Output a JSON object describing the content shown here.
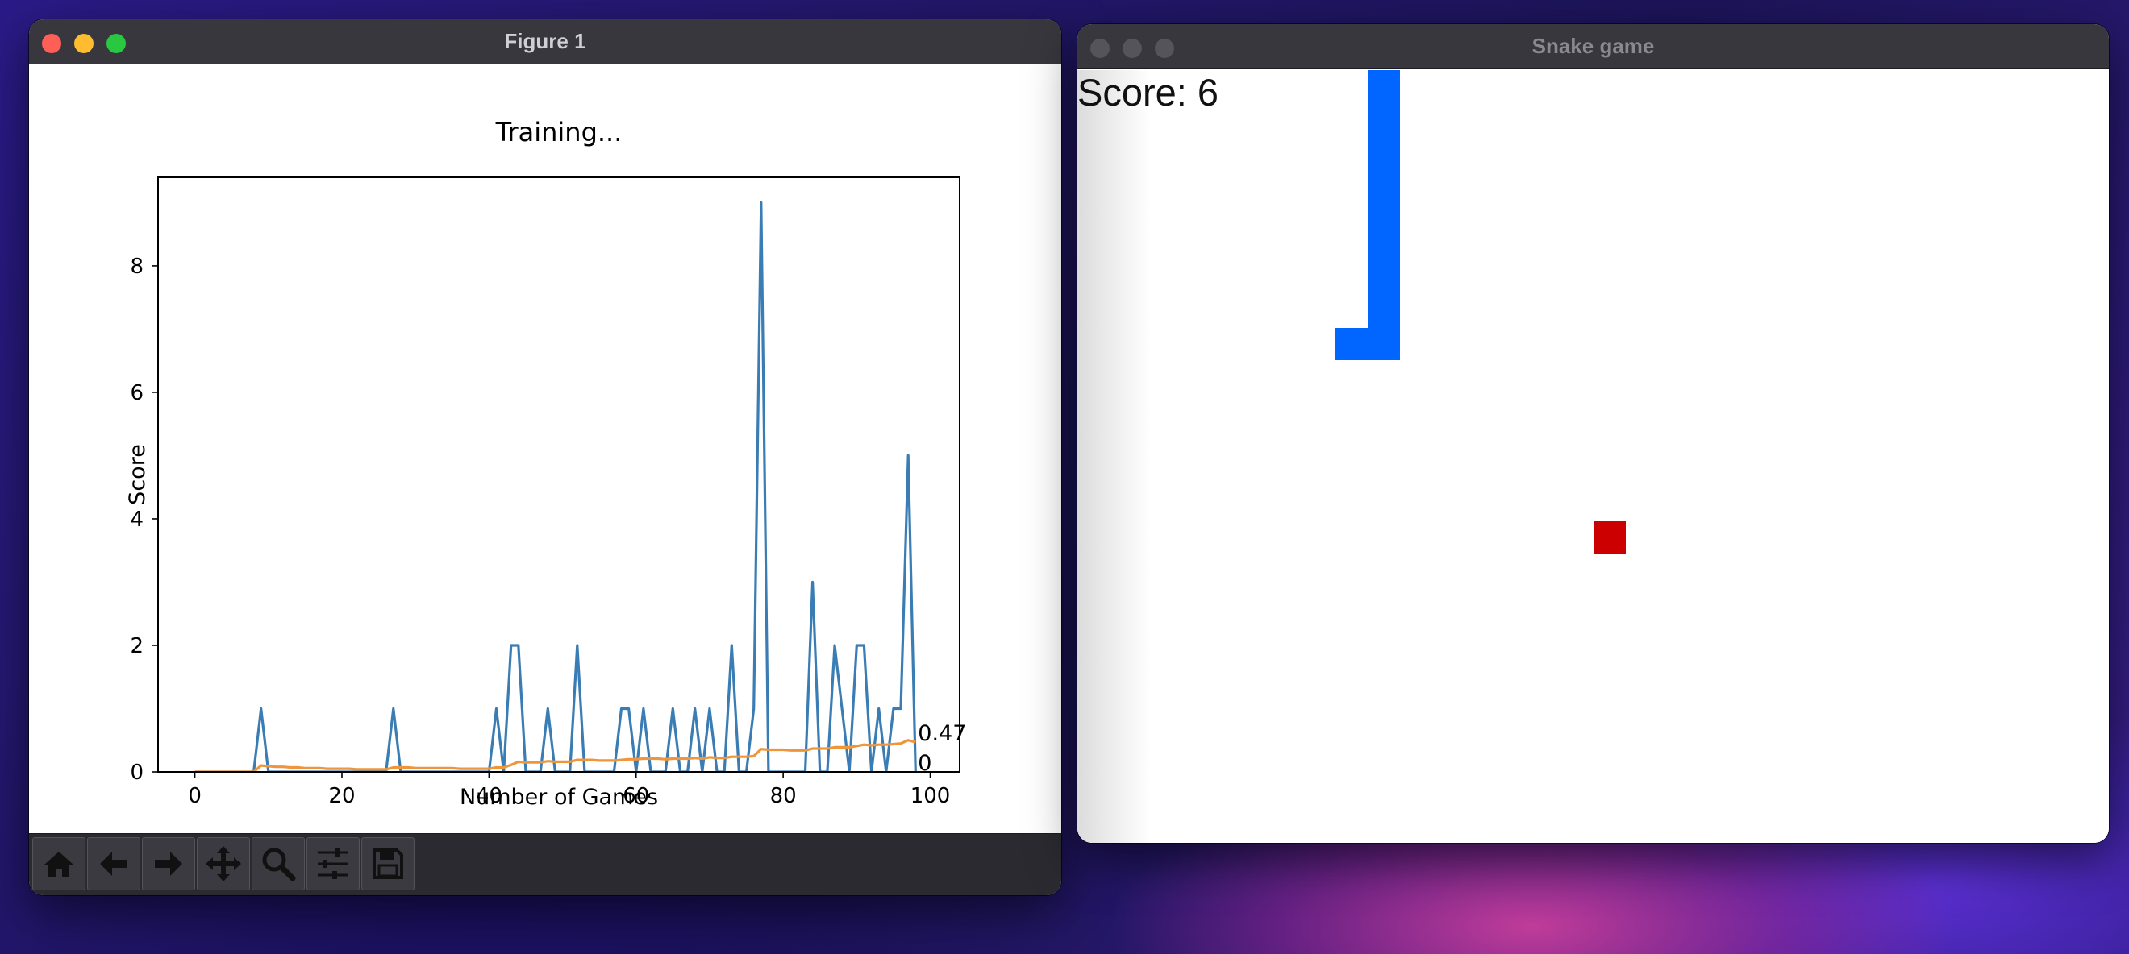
{
  "figure_window": {
    "title": "Figure 1",
    "toolbar": [
      {
        "name": "home-icon"
      },
      {
        "name": "back-arrow-icon"
      },
      {
        "name": "forward-arrow-icon"
      },
      {
        "name": "pan-icon"
      },
      {
        "name": "zoom-icon"
      },
      {
        "name": "configure-subplots-icon"
      },
      {
        "name": "save-icon"
      }
    ]
  },
  "chart_data": {
    "type": "line",
    "title": "Training...",
    "xlabel": "Number of Games",
    "ylabel": "Score",
    "xlim": [
      -5,
      104
    ],
    "ylim": [
      0,
      9.4
    ],
    "xticks": [
      0,
      20,
      40,
      60,
      80,
      100
    ],
    "yticks": [
      0,
      2,
      4,
      6,
      8
    ],
    "colors": {
      "scores": "#3a7db4",
      "mean": "#f0963a"
    },
    "series": [
      {
        "x": [
          0,
          1,
          2,
          3,
          4,
          5,
          6,
          7,
          8,
          9,
          10,
          11,
          12,
          13,
          14,
          15,
          16,
          17,
          18,
          19,
          20,
          21,
          22,
          23,
          24,
          25,
          26,
          27,
          28,
          29,
          30,
          31,
          32,
          33,
          34,
          35,
          36,
          37,
          38,
          39,
          40,
          41,
          42,
          43,
          44,
          45,
          46,
          47,
          48,
          49,
          50,
          51,
          52,
          53,
          54,
          55,
          56,
          57,
          58,
          59,
          60,
          61,
          62,
          63,
          64,
          65,
          66,
          67,
          68,
          69,
          70,
          71,
          72,
          73,
          74,
          75,
          76,
          77,
          78,
          79,
          80,
          81,
          82,
          83,
          84,
          85,
          86,
          87,
          88,
          89,
          90,
          91,
          92,
          93,
          94,
          95,
          96,
          97,
          98
        ],
        "values": [
          0,
          0,
          0,
          0,
          0,
          0,
          0,
          0,
          0,
          1,
          0,
          0,
          0,
          0,
          0,
          0,
          0,
          0,
          0,
          0,
          0,
          0,
          0,
          0,
          0,
          0,
          0,
          1,
          0,
          0,
          0,
          0,
          0,
          0,
          0,
          0,
          0,
          0,
          0,
          0,
          0,
          1,
          0,
          2,
          2,
          0,
          0,
          0,
          1,
          0,
          0,
          0,
          2,
          0,
          0,
          0,
          0,
          0,
          1,
          1,
          0,
          1,
          0,
          0,
          0,
          1,
          0,
          0,
          1,
          0,
          1,
          0,
          0,
          2,
          0,
          0,
          1,
          9,
          0,
          0,
          0,
          0,
          0,
          0,
          3,
          0,
          0,
          2,
          1,
          0,
          2,
          2,
          0,
          1,
          0,
          1,
          1,
          5,
          0
        ]
      },
      {
        "x": [
          0,
          1,
          2,
          3,
          4,
          5,
          6,
          7,
          8,
          9,
          10,
          11,
          12,
          13,
          14,
          15,
          16,
          17,
          18,
          19,
          20,
          21,
          22,
          23,
          24,
          25,
          26,
          27,
          28,
          29,
          30,
          31,
          32,
          33,
          34,
          35,
          36,
          37,
          38,
          39,
          40,
          41,
          42,
          43,
          44,
          45,
          46,
          47,
          48,
          49,
          50,
          51,
          52,
          53,
          54,
          55,
          56,
          57,
          58,
          59,
          60,
          61,
          62,
          63,
          64,
          65,
          66,
          67,
          68,
          69,
          70,
          71,
          72,
          73,
          74,
          75,
          76,
          77,
          78,
          79,
          80,
          81,
          82,
          83,
          84,
          85,
          86,
          87,
          88,
          89,
          90,
          91,
          92,
          93,
          94,
          95,
          96,
          97,
          98
        ],
        "values": [
          0,
          0,
          0,
          0,
          0,
          0,
          0,
          0,
          0,
          0.1,
          0.09,
          0.08,
          0.08,
          0.07,
          0.07,
          0.06,
          0.06,
          0.06,
          0.05,
          0.05,
          0.05,
          0.05,
          0.04,
          0.04,
          0.04,
          0.04,
          0.04,
          0.07,
          0.07,
          0.07,
          0.06,
          0.06,
          0.06,
          0.06,
          0.06,
          0.06,
          0.05,
          0.05,
          0.05,
          0.05,
          0.05,
          0.07,
          0.07,
          0.11,
          0.16,
          0.15,
          0.15,
          0.15,
          0.17,
          0.16,
          0.16,
          0.16,
          0.19,
          0.19,
          0.19,
          0.18,
          0.18,
          0.18,
          0.19,
          0.2,
          0.2,
          0.21,
          0.21,
          0.21,
          0.2,
          0.21,
          0.21,
          0.21,
          0.22,
          0.21,
          0.23,
          0.22,
          0.22,
          0.24,
          0.24,
          0.24,
          0.25,
          0.36,
          0.35,
          0.35,
          0.35,
          0.34,
          0.34,
          0.34,
          0.37,
          0.37,
          0.37,
          0.39,
          0.39,
          0.39,
          0.41,
          0.43,
          0.42,
          0.43,
          0.43,
          0.44,
          0.45,
          0.5,
          0.47
        ]
      }
    ],
    "annotations": [
      "0.47",
      "0"
    ]
  },
  "snake_window": {
    "title": "Snake game",
    "score_text": "Score: 6",
    "colors": {
      "snake": "#0066ff",
      "food": "#cc0000"
    }
  }
}
